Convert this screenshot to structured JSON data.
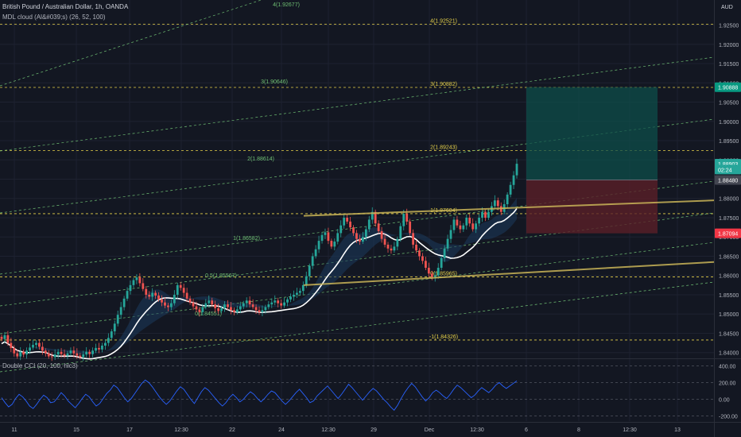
{
  "header": {
    "symbol": "British Pound / Australian Dollar, 1h, OANDA",
    "indicator": "MDL cloud (Al&#039;s) (26, 52, 100)",
    "currency": "AUD"
  },
  "chart_data": {
    "type": "candlestick",
    "price_axis": {
      "range": [
        1.8385,
        1.9315
      ],
      "ticks": [
        "1.92500",
        "1.92000",
        "1.91500",
        "1.91000",
        "1.90500",
        "1.90000",
        "1.89500",
        "1.89000",
        "1.88500",
        "1.88000",
        "1.87500",
        "1.87000",
        "1.86500",
        "1.86000",
        "1.85500",
        "1.85000",
        "1.84500",
        "1.84000"
      ],
      "tick_values": [
        1.925,
        1.92,
        1.915,
        1.91,
        1.905,
        1.9,
        1.895,
        1.89,
        1.885,
        1.88,
        1.875,
        1.87,
        1.865,
        1.86,
        1.855,
        1.85,
        1.845,
        1.84
      ]
    },
    "time_axis": {
      "labels": [
        "11",
        "15",
        "17",
        "12:30",
        "22",
        "24",
        "12:30",
        "29",
        "Dec",
        "12:30",
        "6",
        "8",
        "12:30",
        "13"
      ]
    },
    "price_badges": [
      {
        "text": "1.90888",
        "value": 1.90888,
        "color": "#089981"
      },
      {
        "text": "1.88903",
        "value": 1.88903,
        "color": "#26a69a"
      },
      {
        "text": "02:24",
        "value": 1.8875,
        "color": "#26a69a"
      },
      {
        "text": "1.88480",
        "value": 1.8848,
        "color": "#434651"
      },
      {
        "text": "1.87094",
        "value": 1.87094,
        "color": "#f23645"
      }
    ],
    "fib_yellow": [
      {
        "text": "4(1.92521)",
        "value": 1.92521
      },
      {
        "text": "3(1.90882)",
        "value": 1.90882
      },
      {
        "text": "2(1.89243)",
        "value": 1.89243
      },
      {
        "text": "1(1.87604)",
        "value": 1.87604
      },
      {
        "text": "0(1.85965)",
        "value": 1.85965
      },
      {
        "text": "-1(1.84326)",
        "value": 1.84326
      }
    ],
    "fib_green": [
      {
        "text": "4(1.92677)"
      },
      {
        "text": "3(1.90646)"
      },
      {
        "text": "2(1.88614)"
      },
      {
        "text": "1(1.86582)"
      },
      {
        "text": "0.5(1.85567)"
      },
      {
        "text": "0(1.84551)"
      }
    ],
    "candle_close": [
      1.8435,
      1.8445,
      1.8425,
      1.8412,
      1.8398,
      1.839,
      1.8402,
      1.8395,
      1.8405,
      1.8413,
      1.842,
      1.8425,
      1.8415,
      1.8405,
      1.8398,
      1.839,
      1.8388,
      1.8395,
      1.8402,
      1.8396,
      1.8392,
      1.8398,
      1.8405,
      1.8398,
      1.8392,
      1.8388,
      1.8395,
      1.8402,
      1.8396,
      1.8405,
      1.8412,
      1.8408,
      1.8418,
      1.8425,
      1.8438,
      1.8455,
      1.8475,
      1.8498,
      1.8518,
      1.854,
      1.856,
      1.8575,
      1.8588,
      1.8595,
      1.858,
      1.8565,
      1.855,
      1.8545,
      1.8555,
      1.8548,
      1.8538,
      1.853,
      1.8522,
      1.8518,
      1.8528,
      1.855,
      1.8575,
      1.8568,
      1.8555,
      1.854,
      1.853,
      1.852,
      1.8512,
      1.8505,
      1.8518,
      1.8528,
      1.8535,
      1.8525,
      1.8515,
      1.8508,
      1.8515,
      1.8525,
      1.8518,
      1.851,
      1.8505,
      1.8512,
      1.852,
      1.8528,
      1.8535,
      1.8525,
      1.8518,
      1.851,
      1.8505,
      1.851,
      1.8518,
      1.8525,
      1.853,
      1.8535,
      1.8528,
      1.8522,
      1.853,
      1.8538,
      1.8545,
      1.855,
      1.8555,
      1.856,
      1.8575,
      1.8598,
      1.8625,
      1.865,
      1.8668,
      1.869,
      1.8705,
      1.8712,
      1.869,
      1.8675,
      1.8688,
      1.871,
      1.873,
      1.875,
      1.874,
      1.8725,
      1.871,
      1.8695,
      1.8688,
      1.87,
      1.872,
      1.8745,
      1.8765,
      1.8735,
      1.8715,
      1.8695,
      1.868,
      1.867,
      1.8665,
      1.8675,
      1.8695,
      1.8728,
      1.876,
      1.874,
      1.871,
      1.868,
      1.8665,
      1.865,
      1.8638,
      1.862,
      1.8605,
      1.8595,
      1.86,
      1.862,
      1.8645,
      1.867,
      1.8695,
      1.8718,
      1.8745,
      1.873,
      1.872,
      1.873,
      1.875,
      1.8735,
      1.872,
      1.8735,
      1.875,
      1.8765,
      1.875,
      1.8765,
      1.878,
      1.8795,
      1.878,
      1.8765,
      1.8785,
      1.881,
      1.8835,
      1.886,
      1.889
    ]
  },
  "cci_panel": {
    "title": "Double CCI (20, 100, hlc3)",
    "range": [
      -260,
      480
    ],
    "ticks": [
      "400.00",
      "200.00",
      "0.00",
      "-200.00"
    ],
    "tick_values": [
      400,
      200,
      0,
      -200
    ],
    "values": [
      20,
      -40,
      -90,
      -60,
      10,
      60,
      30,
      -20,
      -80,
      -110,
      -60,
      0,
      50,
      20,
      -40,
      -30,
      20,
      80,
      40,
      -20,
      -60,
      -100,
      -50,
      10,
      60,
      30,
      -30,
      -80,
      -50,
      10,
      70,
      110,
      170,
      140,
      80,
      20,
      -30,
      10,
      70,
      130,
      190,
      230,
      200,
      150,
      90,
      30,
      -20,
      -60,
      -20,
      40,
      100,
      150,
      120,
      60,
      0,
      -50,
      20,
      90,
      140,
      110,
      60,
      10,
      -40,
      -80,
      -40,
      20,
      60,
      20,
      -30,
      0,
      50,
      90,
      60,
      10,
      -30,
      10,
      60,
      100,
      80,
      30,
      -20,
      -60,
      -20,
      30,
      80,
      120,
      70,
      20,
      -40,
      -20,
      40,
      80,
      120,
      160,
      110,
      60,
      10,
      60,
      120,
      180,
      140,
      90,
      40,
      -10,
      40,
      90,
      130,
      100,
      50,
      0,
      -40,
      -90,
      -130,
      -70,
      10,
      80,
      140,
      190,
      150,
      90,
      30,
      -20,
      20,
      80,
      110,
      80,
      40,
      10,
      60,
      120,
      170,
      140,
      100,
      60,
      20,
      50,
      100,
      140,
      110,
      80,
      120,
      170,
      200,
      160,
      130,
      160,
      190,
      220
    ]
  }
}
